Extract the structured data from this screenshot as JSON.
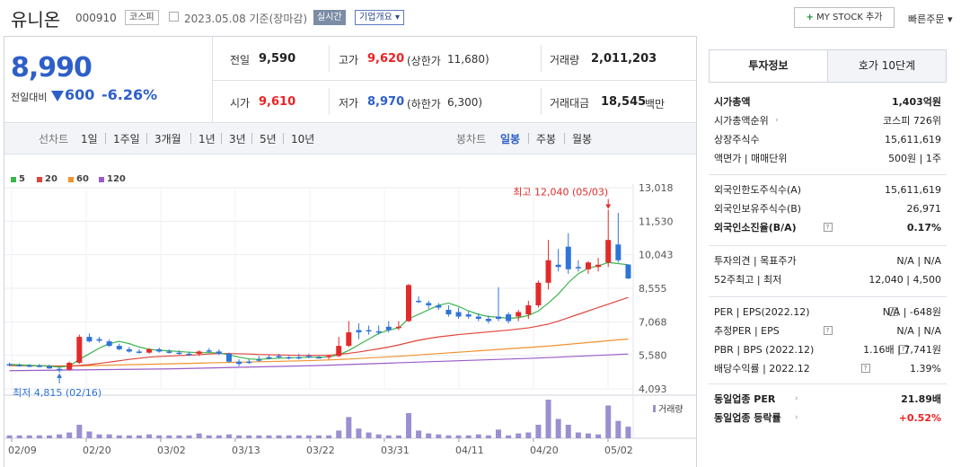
{
  "header": {
    "stock_name": "유니온",
    "stock_code": "000910",
    "market_badge": "코스피",
    "date_text": "2023.05.08 기준(장마감)",
    "realtime_label": "실시간",
    "company_info_label": "기업개요 ▾",
    "mystock_label": "MY STOCK 추가",
    "quick_order_label": "빠른주문 ▾"
  },
  "quote": {
    "price": "8,990",
    "change_label": "전일대비",
    "change_value": "600",
    "change_percent": "-6.26%",
    "prev_close_label": "전일",
    "prev_close": "9,590",
    "high_label": "고가",
    "high": "9,620",
    "upper_limit_label": "(상한가",
    "upper_limit": "11,680)",
    "volume_label": "거래량",
    "volume": "2,011,203",
    "open_label": "시가",
    "open": "9,610",
    "low_label": "저가",
    "low": "8,970",
    "lower_limit_label": "(하한가",
    "lower_limit": "6,300)",
    "amount_label": "거래대금",
    "amount": "18,545",
    "amount_unit": "백만"
  },
  "toolbar": {
    "line_chart_label": "선차트",
    "periods": [
      "1일",
      "1주일",
      "3개월",
      "1년",
      "3년",
      "5년",
      "10년"
    ],
    "candle_label": "봉차트",
    "candle_types": [
      "일봉",
      "주봉",
      "월봉"
    ]
  },
  "chart_data": {
    "type": "line",
    "legend": [
      "5",
      "20",
      "60",
      "120"
    ],
    "legend_colors": [
      "#3bb54a",
      "#e0443a",
      "#f0922e",
      "#9a5cc9"
    ],
    "y_ticks": [
      "13,018",
      "11,530",
      "10,043",
      "8,555",
      "7,068",
      "5,580",
      "4,093"
    ],
    "ylim": [
      4093,
      13018
    ],
    "x_ticks": [
      "02/09",
      "02/20",
      "03/02",
      "03/13",
      "03/22",
      "03/31",
      "04/11",
      "04/20",
      "05/02"
    ],
    "high_annotation": "최고 12,040 (05/03)",
    "low_annotation": "최저 4,815 (02/16)",
    "volume_label": "거래량",
    "candles": [
      {
        "o": 5190,
        "h": 5260,
        "l": 5100,
        "c": 5180,
        "up": false
      },
      {
        "o": 5150,
        "h": 5220,
        "l": 5080,
        "c": 5120,
        "up": false
      },
      {
        "o": 5130,
        "h": 5200,
        "l": 5060,
        "c": 5100,
        "up": false
      },
      {
        "o": 5120,
        "h": 5200,
        "l": 5050,
        "c": 5100,
        "up": false
      },
      {
        "o": 5090,
        "h": 5170,
        "l": 4980,
        "c": 5000,
        "up": false
      },
      {
        "o": 4980,
        "h": 5060,
        "l": 4815,
        "c": 4950,
        "up": false
      },
      {
        "o": 4950,
        "h": 5300,
        "l": 4900,
        "c": 5250,
        "up": true
      },
      {
        "o": 5250,
        "h": 6500,
        "l": 5200,
        "c": 6400,
        "up": true
      },
      {
        "o": 6400,
        "h": 6550,
        "l": 6150,
        "c": 6200,
        "up": false
      },
      {
        "o": 6300,
        "h": 6400,
        "l": 6150,
        "c": 6230,
        "up": false
      },
      {
        "o": 6200,
        "h": 6280,
        "l": 5950,
        "c": 6000,
        "up": false
      },
      {
        "o": 6000,
        "h": 6100,
        "l": 5800,
        "c": 5850,
        "up": false
      },
      {
        "o": 5850,
        "h": 5950,
        "l": 5700,
        "c": 5750,
        "up": false
      },
      {
        "o": 5750,
        "h": 5850,
        "l": 5650,
        "c": 5700,
        "up": false
      },
      {
        "o": 5700,
        "h": 5900,
        "l": 5650,
        "c": 5850,
        "up": true
      },
      {
        "o": 5850,
        "h": 5920,
        "l": 5700,
        "c": 5750,
        "up": false
      },
      {
        "o": 5750,
        "h": 5850,
        "l": 5650,
        "c": 5700,
        "up": false
      },
      {
        "o": 5700,
        "h": 5800,
        "l": 5600,
        "c": 5650,
        "up": false
      },
      {
        "o": 5650,
        "h": 5750,
        "l": 5550,
        "c": 5600,
        "up": false
      },
      {
        "o": 5650,
        "h": 5800,
        "l": 5550,
        "c": 5750,
        "up": true
      },
      {
        "o": 5800,
        "h": 5900,
        "l": 5700,
        "c": 5750,
        "up": false
      },
      {
        "o": 5750,
        "h": 5850,
        "l": 5600,
        "c": 5650,
        "up": false
      },
      {
        "o": 5650,
        "h": 5700,
        "l": 5250,
        "c": 5300,
        "up": false
      },
      {
        "o": 5300,
        "h": 5400,
        "l": 5100,
        "c": 5200,
        "up": false
      },
      {
        "o": 5300,
        "h": 5400,
        "l": 5200,
        "c": 5250,
        "up": false
      },
      {
        "o": 5400,
        "h": 5550,
        "l": 5300,
        "c": 5350,
        "up": false
      },
      {
        "o": 5500,
        "h": 5600,
        "l": 5400,
        "c": 5450,
        "up": false
      },
      {
        "o": 5550,
        "h": 5650,
        "l": 5450,
        "c": 5500,
        "up": false
      },
      {
        "o": 5500,
        "h": 5550,
        "l": 5400,
        "c": 5450,
        "up": false
      },
      {
        "o": 5500,
        "h": 5650,
        "l": 5400,
        "c": 5500,
        "up": false
      },
      {
        "o": 5550,
        "h": 5650,
        "l": 5450,
        "c": 5500,
        "up": false
      },
      {
        "o": 5500,
        "h": 5550,
        "l": 5450,
        "c": 5500,
        "up": false
      },
      {
        "o": 5500,
        "h": 5600,
        "l": 5400,
        "c": 5550,
        "up": true
      },
      {
        "o": 5550,
        "h": 6400,
        "l": 5500,
        "c": 6000,
        "up": true
      },
      {
        "o": 6000,
        "h": 7100,
        "l": 5950,
        "c": 6600,
        "up": true
      },
      {
        "o": 6600,
        "h": 7000,
        "l": 6300,
        "c": 6700,
        "up": false
      },
      {
        "o": 6700,
        "h": 6900,
        "l": 6500,
        "c": 6700,
        "up": false
      },
      {
        "o": 6650,
        "h": 6900,
        "l": 6500,
        "c": 6650,
        "up": false
      },
      {
        "o": 6700,
        "h": 7100,
        "l": 6600,
        "c": 6850,
        "up": false
      },
      {
        "o": 6800,
        "h": 7100,
        "l": 6700,
        "c": 6850,
        "up": true
      },
      {
        "o": 7100,
        "h": 8750,
        "l": 7050,
        "c": 8700,
        "up": true
      },
      {
        "o": 8000,
        "h": 8200,
        "l": 7900,
        "c": 8000,
        "up": false
      },
      {
        "o": 7900,
        "h": 8000,
        "l": 7650,
        "c": 7800,
        "up": false
      },
      {
        "o": 7800,
        "h": 7900,
        "l": 7600,
        "c": 7700,
        "up": false
      },
      {
        "o": 7600,
        "h": 7800,
        "l": 7300,
        "c": 7400,
        "up": false
      },
      {
        "o": 7500,
        "h": 7700,
        "l": 7200,
        "c": 7300,
        "up": false
      },
      {
        "o": 7400,
        "h": 7550,
        "l": 7200,
        "c": 7300,
        "up": false
      },
      {
        "o": 7300,
        "h": 7450,
        "l": 7100,
        "c": 7200,
        "up": false
      },
      {
        "o": 7200,
        "h": 7350,
        "l": 7000,
        "c": 7100,
        "up": false
      },
      {
        "o": 7200,
        "h": 8600,
        "l": 7100,
        "c": 7300,
        "up": false
      },
      {
        "o": 7400,
        "h": 7500,
        "l": 7000,
        "c": 7100,
        "up": false
      },
      {
        "o": 7300,
        "h": 7600,
        "l": 7100,
        "c": 7500,
        "up": true
      },
      {
        "o": 7400,
        "h": 8000,
        "l": 7200,
        "c": 7800,
        "up": true
      },
      {
        "o": 7800,
        "h": 8900,
        "l": 7700,
        "c": 8800,
        "up": true
      },
      {
        "o": 8800,
        "h": 10700,
        "l": 8500,
        "c": 9800,
        "up": true
      },
      {
        "o": 9600,
        "h": 10300,
        "l": 9300,
        "c": 9500,
        "up": false
      },
      {
        "o": 10400,
        "h": 11000,
        "l": 9200,
        "c": 9400,
        "up": false
      },
      {
        "o": 9500,
        "h": 9800,
        "l": 9300,
        "c": 9500,
        "up": false
      },
      {
        "o": 9400,
        "h": 9750,
        "l": 9200,
        "c": 9700,
        "up": true
      },
      {
        "o": 9600,
        "h": 9900,
        "l": 9300,
        "c": 9500,
        "up": true
      },
      {
        "o": 10700,
        "h": 12040,
        "l": 9500,
        "c": 9700,
        "up": true
      },
      {
        "o": 10500,
        "h": 11900,
        "l": 9700,
        "c": 9800,
        "up": false
      },
      {
        "o": 9610,
        "h": 9620,
        "l": 8970,
        "c": 8990,
        "up": false
      }
    ],
    "ma5": [
      5180,
      5160,
      5140,
      5120,
      5100,
      5060,
      5100,
      5400,
      5650,
      5900,
      6100,
      6200,
      6100,
      5950,
      5850,
      5800,
      5780,
      5750,
      5720,
      5700,
      5700,
      5690,
      5600,
      5500,
      5420,
      5400,
      5430,
      5450,
      5470,
      5480,
      5500,
      5500,
      5510,
      5600,
      5800,
      6050,
      6300,
      6550,
      6700,
      6800,
      7200,
      7400,
      7600,
      7800,
      7900,
      7750,
      7550,
      7400,
      7300,
      7270,
      7220,
      7250,
      7350,
      7550,
      7900,
      8300,
      8800,
      9200,
      9450,
      9550,
      9700,
      9650,
      9600
    ],
    "ma20": [
      5150,
      5140,
      5130,
      5120,
      5110,
      5100,
      5100,
      5130,
      5170,
      5220,
      5280,
      5340,
      5400,
      5450,
      5500,
      5530,
      5550,
      5570,
      5590,
      5610,
      5640,
      5660,
      5660,
      5650,
      5640,
      5620,
      5610,
      5600,
      5590,
      5580,
      5580,
      5580,
      5590,
      5620,
      5670,
      5730,
      5800,
      5870,
      5950,
      6040,
      6150,
      6250,
      6330,
      6400,
      6450,
      6500,
      6540,
      6580,
      6620,
      6660,
      6700,
      6750,
      6800,
      6880,
      6970,
      7100,
      7250,
      7400,
      7550,
      7700,
      7850,
      8000,
      8150
    ],
    "ma60": [
      5120,
      5118,
      5116,
      5114,
      5112,
      5110,
      5110,
      5115,
      5125,
      5135,
      5145,
      5155,
      5165,
      5175,
      5185,
      5195,
      5205,
      5215,
      5225,
      5235,
      5245,
      5255,
      5265,
      5275,
      5285,
      5295,
      5305,
      5315,
      5325,
      5335,
      5345,
      5360,
      5375,
      5395,
      5415,
      5440,
      5465,
      5490,
      5515,
      5540,
      5570,
      5600,
      5630,
      5660,
      5690,
      5720,
      5750,
      5780,
      5810,
      5840,
      5870,
      5900,
      5930,
      5960,
      5990,
      6030,
      6070,
      6110,
      6150,
      6190,
      6230,
      6270,
      6300
    ],
    "ma120": [
      4900,
      4905,
      4910,
      4915,
      4920,
      4925,
      4930,
      4935,
      4940,
      4945,
      4950,
      4955,
      4960,
      4965,
      4970,
      4975,
      4980,
      4990,
      5000,
      5010,
      5020,
      5030,
      5040,
      5050,
      5060,
      5070,
      5080,
      5090,
      5100,
      5110,
      5120,
      5130,
      5145,
      5160,
      5175,
      5190,
      5205,
      5220,
      5235,
      5250,
      5265,
      5280,
      5295,
      5310,
      5325,
      5340,
      5355,
      5370,
      5385,
      5400,
      5415,
      5430,
      5445,
      5460,
      5480,
      5500,
      5520,
      5540,
      5560,
      5580,
      5600,
      5620,
      5640
    ],
    "volumes": [
      3,
      3,
      3,
      3,
      3,
      4,
      6,
      14,
      7,
      4,
      4,
      3,
      3,
      3,
      4,
      3,
      3,
      3,
      3,
      5,
      3,
      3,
      4,
      3,
      3,
      3,
      3,
      3,
      3,
      3,
      3,
      3,
      3,
      8,
      22,
      10,
      6,
      4,
      3,
      3,
      26,
      8,
      5,
      4,
      3,
      3,
      3,
      4,
      3,
      9,
      3,
      5,
      6,
      14,
      40,
      20,
      14,
      6,
      5,
      4,
      34,
      18,
      12
    ]
  },
  "sidebar": {
    "tab_invest": "투자정보",
    "tab_orderbook": "호가 10단계",
    "rows1": [
      {
        "label": "시가총액",
        "value": "1,403억원"
      },
      {
        "label": "시가총액순위",
        "value": "코스피 726위"
      },
      {
        "label": "상장주식수",
        "value": "15,611,619"
      },
      {
        "label": "액면가 | 매매단위",
        "value": "500원 | 1주"
      }
    ],
    "rows2": [
      {
        "label": "외국인한도주식수(A)",
        "value": "15,611,619"
      },
      {
        "label": "외국인보유주식수(B)",
        "value": "26,971"
      },
      {
        "label": "외국인소진율(B/A)",
        "value": "0.17%"
      }
    ],
    "rows3": [
      {
        "label": "투자의견 | 목표주가",
        "value": "N/A | N/A"
      },
      {
        "label": "52주최고 | 최저",
        "value": "12,040 | 4,500"
      }
    ],
    "rows4": [
      {
        "label": "PER | EPS(2022.12)",
        "value": "N/A | -648원"
      },
      {
        "label": "추정PER | EPS",
        "value": "N/A | N/A"
      },
      {
        "label": "PBR | BPS (2022.12)",
        "value": "1.16배 | 7,741원"
      },
      {
        "label": "배당수익률 | 2022.12",
        "value": "1.39%"
      }
    ],
    "rows5": [
      {
        "label": "동일업종 PER",
        "value": "21.89배"
      },
      {
        "label": "동일업종 등락률",
        "value": "+0.52%"
      }
    ]
  }
}
